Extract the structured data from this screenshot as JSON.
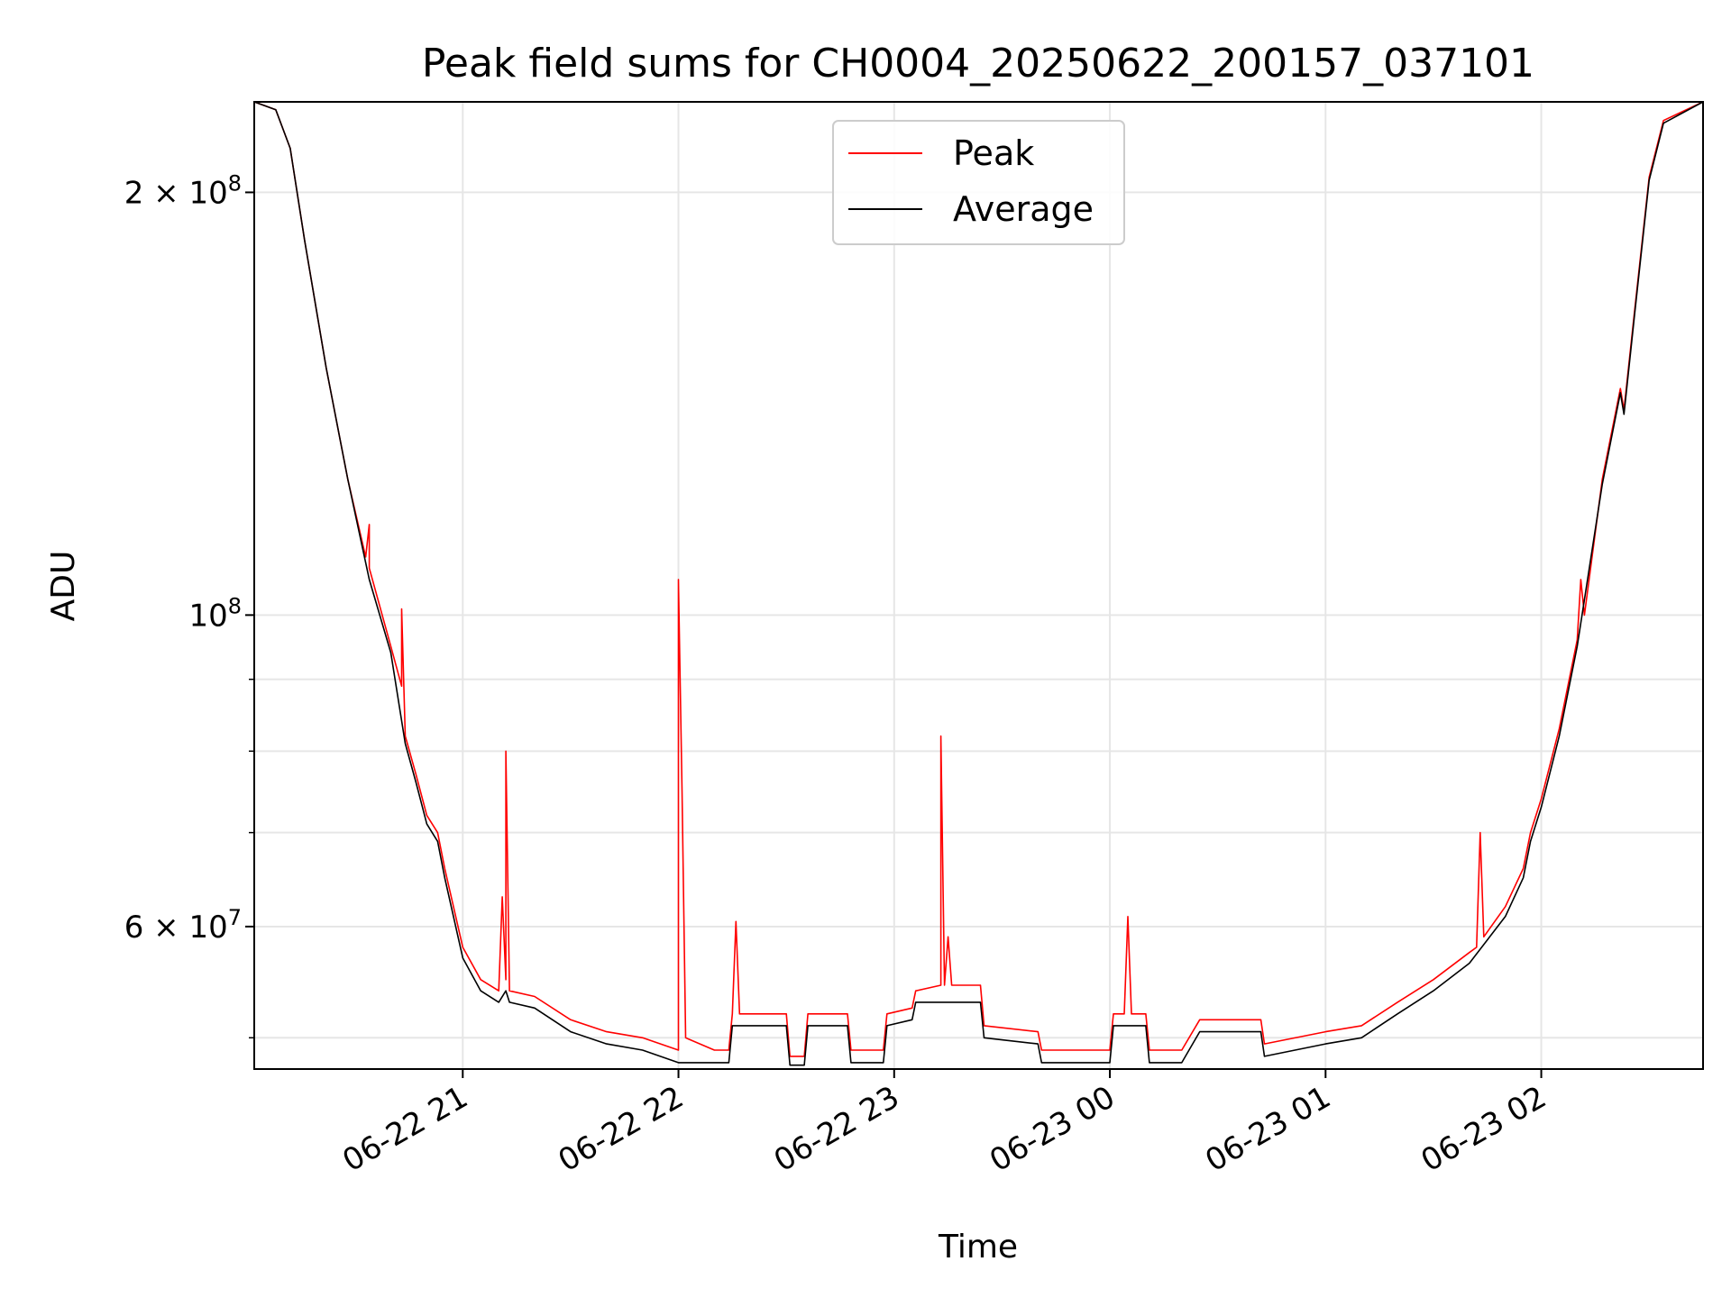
{
  "chart_data": {
    "type": "line",
    "title": "Peak field sums for CH0004_20250622_200157_037101",
    "xlabel": "Time",
    "ylabel": "ADU",
    "yscale": "log",
    "xlim": [
      "2025-06-22 20:02",
      "2025-06-23 02:45"
    ],
    "ylim": [
      47500000,
      232000000
    ],
    "grid": true,
    "legend_position": "top-center",
    "x_ticks": [
      {
        "value": "2025-06-22 21:00",
        "label": "06-22 21"
      },
      {
        "value": "2025-06-22 22:00",
        "label": "06-22 22"
      },
      {
        "value": "2025-06-22 23:00",
        "label": "06-22 23"
      },
      {
        "value": "2025-06-23 00:00",
        "label": "06-23 00"
      },
      {
        "value": "2025-06-23 01:00",
        "label": "06-23 01"
      },
      {
        "value": "2025-06-23 02:00",
        "label": "06-23 02"
      }
    ],
    "y_ticks": [
      {
        "value": 200000000,
        "base": "2 × 10",
        "exp": "8"
      },
      {
        "value": 100000000,
        "base": "10",
        "exp": "8"
      },
      {
        "value": 60000000,
        "base": "6 × 10",
        "exp": "7"
      }
    ],
    "y_minor_ticks": [
      50000000,
      70000000,
      80000000,
      90000000
    ],
    "series": [
      {
        "name": "Peak",
        "color": "#ff0000",
        "points": [
          [
            "2025-06-22 20:02",
            232000000
          ],
          [
            "2025-06-22 20:08",
            229000000
          ],
          [
            "2025-06-22 20:12",
            215000000
          ],
          [
            "2025-06-22 20:16",
            185000000
          ],
          [
            "2025-06-22 20:22",
            150000000
          ],
          [
            "2025-06-22 20:28",
            125000000
          ],
          [
            "2025-06-22 20:33",
            110000000
          ],
          [
            "2025-06-22 20:34",
            116000000
          ],
          [
            "2025-06-22 20:34",
            108000000
          ],
          [
            "2025-06-22 20:40",
            95000000
          ],
          [
            "2025-06-22 20:43",
            89000000
          ],
          [
            "2025-06-22 20:43",
            101000000
          ],
          [
            "2025-06-22 20:44",
            82000000
          ],
          [
            "2025-06-22 20:47",
            77000000
          ],
          [
            "2025-06-22 20:50",
            72000000
          ],
          [
            "2025-06-22 20:53",
            70000000
          ],
          [
            "2025-06-22 20:55",
            66000000
          ],
          [
            "2025-06-22 21:00",
            58000000
          ],
          [
            "2025-06-22 21:05",
            55000000
          ],
          [
            "2025-06-22 21:10",
            54000000
          ],
          [
            "2025-06-22 21:11",
            63000000
          ],
          [
            "2025-06-22 21:12",
            55000000
          ],
          [
            "2025-06-22 21:12",
            80000000
          ],
          [
            "2025-06-22 21:13",
            54000000
          ],
          [
            "2025-06-22 21:20",
            53500000
          ],
          [
            "2025-06-22 21:30",
            51500000
          ],
          [
            "2025-06-22 21:40",
            50500000
          ],
          [
            "2025-06-22 21:50",
            50000000
          ],
          [
            "2025-06-22 22:00",
            49000000
          ],
          [
            "2025-06-22 22:00",
            106000000
          ],
          [
            "2025-06-22 22:01",
            75000000
          ],
          [
            "2025-06-22 22:02",
            50000000
          ],
          [
            "2025-06-22 22:10",
            49000000
          ],
          [
            "2025-06-22 22:14",
            49000000
          ],
          [
            "2025-06-22 22:15",
            52000000
          ],
          [
            "2025-06-22 22:16",
            60500000
          ],
          [
            "2025-06-22 22:17",
            52000000
          ],
          [
            "2025-06-22 22:30",
            52000000
          ],
          [
            "2025-06-22 22:31",
            48500000
          ],
          [
            "2025-06-22 22:35",
            48500000
          ],
          [
            "2025-06-22 22:36",
            52000000
          ],
          [
            "2025-06-22 22:47",
            52000000
          ],
          [
            "2025-06-22 22:48",
            49000000
          ],
          [
            "2025-06-22 22:57",
            49000000
          ],
          [
            "2025-06-22 22:58",
            52000000
          ],
          [
            "2025-06-22 23:05",
            52500000
          ],
          [
            "2025-06-22 23:06",
            54000000
          ],
          [
            "2025-06-22 23:13",
            54500000
          ],
          [
            "2025-06-22 23:13",
            82000000
          ],
          [
            "2025-06-22 23:14",
            54500000
          ],
          [
            "2025-06-22 23:15",
            59000000
          ],
          [
            "2025-06-22 23:16",
            54500000
          ],
          [
            "2025-06-22 23:24",
            54500000
          ],
          [
            "2025-06-22 23:25",
            51000000
          ],
          [
            "2025-06-22 23:40",
            50500000
          ],
          [
            "2025-06-22 23:41",
            49000000
          ],
          [
            "2025-06-22 24:00",
            49000000
          ],
          [
            "2025-06-23 00:01",
            52000000
          ],
          [
            "2025-06-23 00:04",
            52000000
          ],
          [
            "2025-06-23 00:05",
            61000000
          ],
          [
            "2025-06-23 00:06",
            52000000
          ],
          [
            "2025-06-23 00:10",
            52000000
          ],
          [
            "2025-06-23 00:11",
            49000000
          ],
          [
            "2025-06-23 00:20",
            49000000
          ],
          [
            "2025-06-23 00:25",
            51500000
          ],
          [
            "2025-06-23 00:42",
            51500000
          ],
          [
            "2025-06-23 00:43",
            49500000
          ],
          [
            "2025-06-23 01:00",
            50500000
          ],
          [
            "2025-06-23 01:10",
            51000000
          ],
          [
            "2025-06-23 01:20",
            53000000
          ],
          [
            "2025-06-23 01:30",
            55000000
          ],
          [
            "2025-06-23 01:40",
            57500000
          ],
          [
            "2025-06-23 01:42",
            58000000
          ],
          [
            "2025-06-23 01:43",
            70000000
          ],
          [
            "2025-06-23 01:44",
            59000000
          ],
          [
            "2025-06-23 01:50",
            62000000
          ],
          [
            "2025-06-23 01:55",
            66000000
          ],
          [
            "2025-06-23 01:57",
            70000000
          ],
          [
            "2025-06-23 02:00",
            74000000
          ],
          [
            "2025-06-23 02:05",
            83000000
          ],
          [
            "2025-06-23 02:10",
            96000000
          ],
          [
            "2025-06-23 02:11",
            106000000
          ],
          [
            "2025-06-23 02:12",
            100000000
          ],
          [
            "2025-06-23 02:17",
            125000000
          ],
          [
            "2025-06-23 02:22",
            145000000
          ],
          [
            "2025-06-23 02:23",
            140000000
          ],
          [
            "2025-06-23 02:26",
            165000000
          ],
          [
            "2025-06-23 02:30",
            205000000
          ],
          [
            "2025-06-23 02:34",
            225000000
          ],
          [
            "2025-06-23 02:45",
            232000000
          ]
        ]
      },
      {
        "name": "Average",
        "color": "#000000",
        "points": [
          [
            "2025-06-22 20:02",
            232000000
          ],
          [
            "2025-06-22 20:08",
            229000000
          ],
          [
            "2025-06-22 20:12",
            215000000
          ],
          [
            "2025-06-22 20:16",
            185000000
          ],
          [
            "2025-06-22 20:22",
            150000000
          ],
          [
            "2025-06-22 20:28",
            125000000
          ],
          [
            "2025-06-22 20:34",
            106000000
          ],
          [
            "2025-06-22 20:40",
            94000000
          ],
          [
            "2025-06-22 20:44",
            81000000
          ],
          [
            "2025-06-22 20:47",
            76000000
          ],
          [
            "2025-06-22 20:50",
            71000000
          ],
          [
            "2025-06-22 20:53",
            69000000
          ],
          [
            "2025-06-22 20:55",
            65000000
          ],
          [
            "2025-06-22 21:00",
            57000000
          ],
          [
            "2025-06-22 21:05",
            54000000
          ],
          [
            "2025-06-22 21:10",
            53000000
          ],
          [
            "2025-06-22 21:12",
            54000000
          ],
          [
            "2025-06-22 21:13",
            53000000
          ],
          [
            "2025-06-22 21:20",
            52500000
          ],
          [
            "2025-06-22 21:30",
            50500000
          ],
          [
            "2025-06-22 21:40",
            49500000
          ],
          [
            "2025-06-22 21:50",
            49000000
          ],
          [
            "2025-06-22 22:00",
            48000000
          ],
          [
            "2025-06-22 22:10",
            48000000
          ],
          [
            "2025-06-22 22:14",
            48000000
          ],
          [
            "2025-06-22 22:15",
            51000000
          ],
          [
            "2025-06-22 22:30",
            51000000
          ],
          [
            "2025-06-22 22:31",
            47800000
          ],
          [
            "2025-06-22 22:35",
            47800000
          ],
          [
            "2025-06-22 22:36",
            51000000
          ],
          [
            "2025-06-22 22:47",
            51000000
          ],
          [
            "2025-06-22 22:48",
            48000000
          ],
          [
            "2025-06-22 22:57",
            48000000
          ],
          [
            "2025-06-22 22:58",
            51000000
          ],
          [
            "2025-06-22 23:05",
            51500000
          ],
          [
            "2025-06-22 23:06",
            53000000
          ],
          [
            "2025-06-22 23:24",
            53000000
          ],
          [
            "2025-06-22 23:25",
            50000000
          ],
          [
            "2025-06-22 23:40",
            49500000
          ],
          [
            "2025-06-22 23:41",
            48000000
          ],
          [
            "2025-06-22 24:00",
            48000000
          ],
          [
            "2025-06-23 00:01",
            51000000
          ],
          [
            "2025-06-23 00:10",
            51000000
          ],
          [
            "2025-06-23 00:11",
            48000000
          ],
          [
            "2025-06-23 00:20",
            48000000
          ],
          [
            "2025-06-23 00:25",
            50500000
          ],
          [
            "2025-06-23 00:42",
            50500000
          ],
          [
            "2025-06-23 00:43",
            48500000
          ],
          [
            "2025-06-23 01:00",
            49500000
          ],
          [
            "2025-06-23 01:10",
            50000000
          ],
          [
            "2025-06-23 01:20",
            52000000
          ],
          [
            "2025-06-23 01:30",
            54000000
          ],
          [
            "2025-06-23 01:40",
            56500000
          ],
          [
            "2025-06-23 01:50",
            61000000
          ],
          [
            "2025-06-23 01:55",
            65000000
          ],
          [
            "2025-06-23 01:57",
            69000000
          ],
          [
            "2025-06-23 02:00",
            73000000
          ],
          [
            "2025-06-23 02:05",
            82000000
          ],
          [
            "2025-06-23 02:10",
            95000000
          ],
          [
            "2025-06-23 02:17",
            124000000
          ],
          [
            "2025-06-23 02:22",
            144000000
          ],
          [
            "2025-06-23 02:23",
            139000000
          ],
          [
            "2025-06-23 02:26",
            164000000
          ],
          [
            "2025-06-23 02:30",
            204000000
          ],
          [
            "2025-06-23 02:34",
            224000000
          ],
          [
            "2025-06-23 02:45",
            232000000
          ]
        ]
      }
    ]
  }
}
